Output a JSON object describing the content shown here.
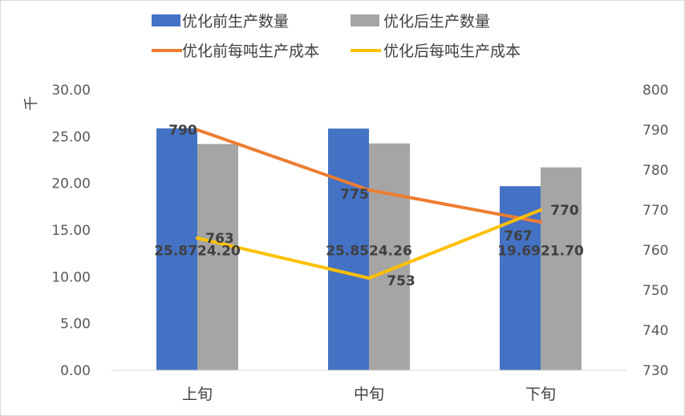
{
  "chart_data": {
    "type": "bar",
    "categories": [
      "上旬",
      "中旬",
      "下旬"
    ],
    "series": [
      {
        "name": "优化前生产数量",
        "kind": "bar",
        "axis": "left",
        "color": "#4472C4",
        "values": [
          25.87,
          25.85,
          19.69
        ],
        "labels": [
          "25.87",
          "25.85",
          "19.69"
        ]
      },
      {
        "name": "优化后生产数量",
        "kind": "bar",
        "axis": "left",
        "color": "#A5A5A5",
        "values": [
          24.2,
          24.26,
          21.7
        ],
        "labels": [
          "24.20",
          "24.26",
          "21.70"
        ]
      },
      {
        "name": "优化前每吨生产成本",
        "kind": "line",
        "axis": "right",
        "color": "#ED7D31",
        "values": [
          790,
          775,
          767
        ],
        "labels": [
          "790",
          "775",
          "767"
        ]
      },
      {
        "name": "优化后每吨生产成本",
        "kind": "line",
        "axis": "right",
        "color": "#FFC000",
        "values": [
          763,
          753,
          770
        ],
        "labels": [
          "763",
          "753",
          "770"
        ]
      }
    ],
    "ylabel": "千",
    "ylim": [
      0,
      30
    ],
    "yticks": [
      "0.00",
      "5.00",
      "10.00",
      "15.00",
      "20.00",
      "25.00",
      "30.00"
    ],
    "y2lim": [
      730,
      800
    ],
    "y2ticks": [
      "730",
      "740",
      "750",
      "760",
      "770",
      "780",
      "790",
      "800"
    ],
    "grid": false,
    "legend_position": "top"
  }
}
